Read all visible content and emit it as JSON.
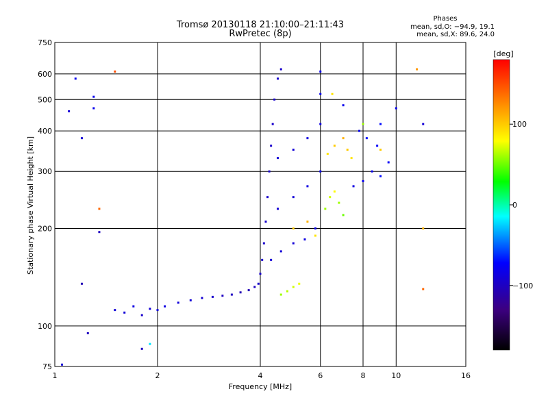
{
  "chart_data": {
    "type": "scatter",
    "title": "Tromsø 20130118 21:10:00–21:11:43",
    "subtitle": "RwPretec (8p)",
    "xlabel": "Frequency [MHz]",
    "ylabel": "Stationary phase Virtual Height [km]",
    "x_scale": "log",
    "y_scale": "log",
    "xlim": [
      1,
      16
    ],
    "ylim": [
      75,
      750
    ],
    "x_ticks": [
      1,
      2,
      4,
      6,
      8,
      10,
      16
    ],
    "y_ticks": [
      75,
      100,
      200,
      300,
      400,
      500,
      600,
      750
    ],
    "grid": true,
    "phase_info": {
      "heading": "Phases",
      "line1": "mean, sd,O: −94.9, 19.1",
      "line2": "mean, sd,X:  89.6, 24.0"
    },
    "colorbar": {
      "label": "[deg]",
      "ticks": [
        100,
        0,
        -100
      ],
      "tick_labels": [
        "100",
        "0",
        "−100"
      ],
      "range": [
        -180,
        180
      ]
    },
    "series": [
      {
        "values": [
          [
            1.5,
            112,
            -90
          ],
          [
            1.6,
            110,
            -90
          ],
          [
            1.7,
            115,
            -85
          ],
          [
            1.8,
            108,
            -95
          ],
          [
            1.9,
            113,
            -90
          ],
          [
            2.0,
            112,
            -88
          ],
          [
            2.1,
            115,
            -85
          ],
          [
            2.3,
            118,
            -88
          ],
          [
            2.5,
            120,
            -90
          ],
          [
            2.7,
            122,
            -92
          ],
          [
            2.9,
            123,
            -95
          ],
          [
            3.1,
            124,
            -100
          ],
          [
            3.3,
            125,
            -100
          ],
          [
            3.5,
            127,
            -105
          ],
          [
            3.7,
            129,
            -105
          ],
          [
            3.85,
            132,
            -100
          ],
          [
            3.95,
            135,
            -95
          ],
          [
            4.0,
            145,
            -95
          ],
          [
            4.05,
            160,
            -95
          ],
          [
            4.1,
            180,
            -95
          ],
          [
            4.15,
            210,
            -95
          ],
          [
            4.2,
            250,
            -95
          ],
          [
            4.25,
            300,
            -95
          ],
          [
            4.3,
            360,
            -95
          ],
          [
            4.35,
            420,
            -95
          ],
          [
            4.4,
            500,
            -95
          ],
          [
            4.5,
            580,
            -95
          ],
          [
            4.6,
            620,
            -95
          ],
          [
            4.3,
            160,
            -90
          ],
          [
            4.6,
            170,
            -90
          ],
          [
            5.0,
            180,
            -90
          ],
          [
            5.4,
            185,
            -85
          ],
          [
            5.8,
            200,
            -80
          ],
          [
            4.5,
            230,
            -90
          ],
          [
            5.0,
            250,
            -90
          ],
          [
            5.5,
            270,
            -85
          ],
          [
            6.0,
            300,
            -80
          ],
          [
            4.5,
            330,
            -90
          ],
          [
            5.0,
            350,
            -90
          ],
          [
            5.5,
            380,
            -85
          ],
          [
            6.0,
            420,
            -85
          ],
          [
            6.0,
            520,
            -80
          ],
          [
            6.0,
            610,
            -80
          ],
          [
            4.6,
            125,
            60
          ],
          [
            4.8,
            128,
            65
          ],
          [
            5.0,
            132,
            70
          ],
          [
            5.2,
            135,
            75
          ],
          [
            5.0,
            200,
            100
          ],
          [
            5.5,
            210,
            110
          ],
          [
            5.8,
            190,
            90
          ],
          [
            6.2,
            230,
            60
          ],
          [
            6.4,
            250,
            70
          ],
          [
            6.6,
            260,
            80
          ],
          [
            6.8,
            240,
            60
          ],
          [
            7.0,
            220,
            50
          ],
          [
            6.3,
            340,
            90
          ],
          [
            6.6,
            360,
            100
          ],
          [
            7.0,
            380,
            110
          ],
          [
            7.2,
            350,
            100
          ],
          [
            7.4,
            330,
            90
          ],
          [
            7.5,
            270,
            -85
          ],
          [
            8.0,
            280,
            -80
          ],
          [
            8.5,
            300,
            -80
          ],
          [
            9.0,
            290,
            -70
          ],
          [
            9.5,
            320,
            -75
          ],
          [
            7.8,
            400,
            -80
          ],
          [
            8.2,
            380,
            -70
          ],
          [
            8.8,
            360,
            -75
          ],
          [
            9.0,
            420,
            -70
          ],
          [
            6.5,
            520,
            90
          ],
          [
            7.0,
            480,
            -80
          ],
          [
            8.0,
            420,
            60
          ],
          [
            9.0,
            350,
            100
          ],
          [
            10.0,
            470,
            -80
          ],
          [
            11.5,
            620,
            120
          ],
          [
            12.0,
            420,
            -90
          ],
          [
            12.0,
            200,
            110
          ],
          [
            12.0,
            130,
            140
          ],
          [
            1.1,
            460,
            -90
          ],
          [
            1.15,
            580,
            -80
          ],
          [
            1.2,
            380,
            -90
          ],
          [
            1.3,
            510,
            -80
          ],
          [
            1.3,
            470,
            -80
          ],
          [
            1.35,
            195,
            -100
          ],
          [
            1.2,
            135,
            -105
          ],
          [
            1.25,
            95,
            -100
          ],
          [
            1.5,
            610,
            150
          ],
          [
            1.35,
            230,
            140
          ],
          [
            1.8,
            85,
            -100
          ],
          [
            1.9,
            88,
            -20
          ],
          [
            1.05,
            76,
            -90
          ]
        ]
      }
    ]
  }
}
